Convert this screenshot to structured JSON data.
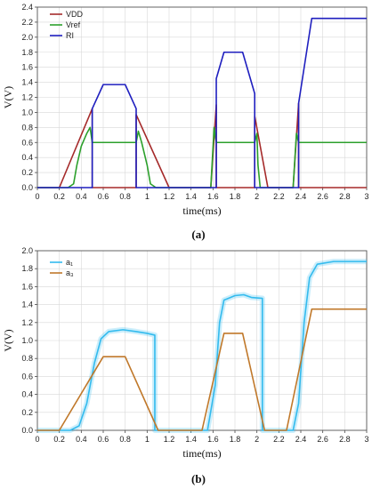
{
  "chart_data": [
    {
      "type": "line",
      "caption": "(a)",
      "xlabel": "time(ms)",
      "ylabel": "V(V)",
      "xlim": [
        0,
        3
      ],
      "ylim": [
        0,
        2.4
      ],
      "xticks": [
        "0",
        "0.2",
        "0.4",
        "0.6",
        "0.8",
        "1",
        "1.2",
        "1.4",
        "1.6",
        "1.8",
        "2",
        "2.2",
        "2.4",
        "2.6",
        "2.8",
        "3"
      ],
      "yticks": [
        "0.0",
        "0.2",
        "0.4",
        "0.6",
        "0.8",
        "1.0",
        "1.2",
        "1.4",
        "1.6",
        "1.8",
        "2.0",
        "2.2",
        "2.4"
      ],
      "legend_position": "top-left",
      "grid": true,
      "series": [
        {
          "name": "VDD",
          "color": "#a52a2a",
          "points": [
            [
              0,
              0
            ],
            [
              0.2,
              0
            ],
            [
              0.5,
              1.05
            ],
            [
              0.5,
              0
            ],
            [
              0.9,
              0
            ],
            [
              0.9,
              0.97
            ],
            [
              1.2,
              0
            ],
            [
              1.58,
              0
            ],
            [
              1.63,
              1.1
            ],
            [
              1.63,
              0
            ],
            [
              1.98,
              0
            ],
            [
              1.98,
              0.95
            ],
            [
              2.1,
              0
            ],
            [
              2.33,
              0
            ],
            [
              2.38,
              1.12
            ],
            [
              2.38,
              0
            ],
            [
              3,
              0
            ]
          ]
        },
        {
          "name": "Vref",
          "color": "#2ca02c",
          "points": [
            [
              0,
              0
            ],
            [
              0.28,
              0
            ],
            [
              0.33,
              0.05
            ],
            [
              0.36,
              0.3
            ],
            [
              0.4,
              0.55
            ],
            [
              0.45,
              0.72
            ],
            [
              0.48,
              0.8
            ],
            [
              0.5,
              0.6
            ],
            [
              0.9,
              0.6
            ],
            [
              0.92,
              0.75
            ],
            [
              0.95,
              0.6
            ],
            [
              1.0,
              0.3
            ],
            [
              1.03,
              0.05
            ],
            [
              1.08,
              0
            ],
            [
              1.58,
              0
            ],
            [
              1.61,
              0.8
            ],
            [
              1.63,
              0.6
            ],
            [
              1.98,
              0.6
            ],
            [
              2.0,
              0.72
            ],
            [
              2.01,
              0.3
            ],
            [
              2.03,
              0
            ],
            [
              2.33,
              0
            ],
            [
              2.36,
              0.72
            ],
            [
              2.38,
              0.6
            ],
            [
              3,
              0.6
            ]
          ]
        },
        {
          "name": "RI",
          "color": "#1f1fbf",
          "points": [
            [
              0,
              0
            ],
            [
              0.5,
              0
            ],
            [
              0.5,
              1.05
            ],
            [
              0.6,
              1.37
            ],
            [
              0.8,
              1.37
            ],
            [
              0.9,
              1.05
            ],
            [
              0.9,
              0
            ],
            [
              1.63,
              0
            ],
            [
              1.63,
              1.45
            ],
            [
              1.7,
              1.8
            ],
            [
              1.87,
              1.8
            ],
            [
              1.98,
              1.25
            ],
            [
              1.98,
              0
            ],
            [
              2.38,
              0
            ],
            [
              2.38,
              1.12
            ],
            [
              2.5,
              2.25
            ],
            [
              3,
              2.25
            ]
          ]
        }
      ]
    },
    {
      "type": "line",
      "caption": "(b)",
      "xlabel": "time(ms)",
      "ylabel": "V(V)",
      "xlim": [
        0,
        3
      ],
      "ylim": [
        0,
        2.0
      ],
      "xticks": [
        "0",
        "0.2",
        "0.4",
        "0.6",
        "0.8",
        "1",
        "1.2",
        "1.4",
        "1.6",
        "1.8",
        "2",
        "2.2",
        "2.4",
        "2.6",
        "2.8",
        "3"
      ],
      "yticks": [
        "0.0",
        "0.2",
        "0.4",
        "0.6",
        "0.8",
        "1.0",
        "1.2",
        "1.4",
        "1.6",
        "1.8",
        "2.0"
      ],
      "legend_position": "top-left",
      "grid": true,
      "series": [
        {
          "name": "a₁",
          "color": "#33bbee",
          "points": [
            [
              0,
              0
            ],
            [
              0.3,
              0
            ],
            [
              0.38,
              0.05
            ],
            [
              0.45,
              0.3
            ],
            [
              0.52,
              0.75
            ],
            [
              0.58,
              1.02
            ],
            [
              0.65,
              1.1
            ],
            [
              0.78,
              1.12
            ],
            [
              0.9,
              1.1
            ],
            [
              1.0,
              1.08
            ],
            [
              1.07,
              1.06
            ],
            [
              1.07,
              0
            ],
            [
              1.55,
              0
            ],
            [
              1.62,
              0.5
            ],
            [
              1.66,
              1.2
            ],
            [
              1.7,
              1.45
            ],
            [
              1.8,
              1.5
            ],
            [
              1.88,
              1.51
            ],
            [
              1.95,
              1.48
            ],
            [
              2.05,
              1.47
            ],
            [
              2.05,
              0
            ],
            [
              2.33,
              0
            ],
            [
              2.38,
              0.3
            ],
            [
              2.43,
              1.2
            ],
            [
              2.48,
              1.7
            ],
            [
              2.55,
              1.85
            ],
            [
              2.7,
              1.88
            ],
            [
              3,
              1.88
            ]
          ]
        },
        {
          "name": "a₃",
          "color": "#c0782a",
          "points": [
            [
              0,
              0
            ],
            [
              0.2,
              0
            ],
            [
              0.6,
              0.82
            ],
            [
              0.8,
              0.82
            ],
            [
              1.1,
              0
            ],
            [
              1.5,
              0
            ],
            [
              1.7,
              1.08
            ],
            [
              1.87,
              1.08
            ],
            [
              2.07,
              0
            ],
            [
              2.27,
              0
            ],
            [
              2.5,
              1.35
            ],
            [
              3,
              1.35
            ]
          ]
        }
      ]
    }
  ]
}
